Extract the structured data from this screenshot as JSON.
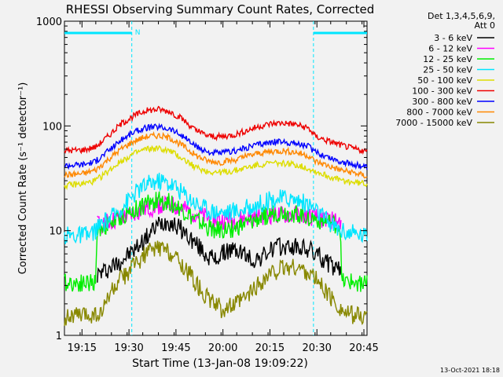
{
  "chart_data": {
    "type": "line",
    "title": "RHESSI Observing Summary Count Rates, Corrected",
    "xlabel": "Start Time (13-Jan-08 19:09:22)",
    "ylabel": "Corrected Count Rate (s⁻¹ detector⁻¹)",
    "yscale": "log",
    "ylim": [
      1,
      1000
    ],
    "xlim_minutes": [
      0,
      96.6
    ],
    "x_ticks": [
      {
        "label": "19:15",
        "minutes": 5.6
      },
      {
        "label": "19:30",
        "minutes": 20.6
      },
      {
        "label": "19:45",
        "minutes": 35.6
      },
      {
        "label": "20:00",
        "minutes": 50.6
      },
      {
        "label": "20:15",
        "minutes": 65.6
      },
      {
        "label": "20:30",
        "minutes": 80.6
      },
      {
        "label": "20:45",
        "minutes": 95.6
      }
    ],
    "y_ticks": [
      {
        "label": "1",
        "value": 1
      },
      {
        "label": "10",
        "value": 10
      },
      {
        "label": "100",
        "value": 100
      },
      {
        "label": "1000",
        "value": 1000
      }
    ],
    "legend_header": [
      "Det 1,3,4,5,6,9,",
      "Att 0"
    ],
    "legend_position": "top-right",
    "night_marker_label": "N",
    "night_marker_color": "#00e5ff",
    "night_intervals_minutes": [
      [
        0,
        21.5
      ],
      [
        79.5,
        96.6
      ]
    ],
    "footer_timestamp": "13-Oct-2021 18:18",
    "series": [
      {
        "name": "3 - 6 keV",
        "color": "#000000",
        "on": [
          10.5,
          88.5
        ],
        "points": [
          [
            10.5,
            3.8
          ],
          [
            14,
            4.3
          ],
          [
            18,
            5.2
          ],
          [
            22,
            6.4
          ],
          [
            26,
            8.5
          ],
          [
            30,
            11.5
          ],
          [
            33,
            12.5
          ],
          [
            37,
            10.5
          ],
          [
            41,
            8.0
          ],
          [
            45,
            6.0
          ],
          [
            48,
            5.2
          ],
          [
            52,
            6.5
          ],
          [
            56,
            6.4
          ],
          [
            60,
            5.2
          ],
          [
            63,
            5.6
          ],
          [
            67,
            6.9
          ],
          [
            71,
            7.0
          ],
          [
            75,
            6.9
          ],
          [
            79,
            6.4
          ],
          [
            83,
            5.2
          ],
          [
            86,
            4.4
          ],
          [
            88.5,
            4.0
          ]
        ]
      },
      {
        "name": "6 - 12 keV",
        "color": "#ff00ff",
        "on": [
          10.5,
          88.5
        ],
        "points": [
          [
            10.5,
            11.5
          ],
          [
            14,
            12.0
          ],
          [
            18,
            13.0
          ],
          [
            22,
            14.5
          ],
          [
            26,
            16.0
          ],
          [
            30,
            17.5
          ],
          [
            34,
            17.5
          ],
          [
            38,
            16.0
          ],
          [
            42,
            14.5
          ],
          [
            46,
            13.0
          ],
          [
            50,
            12.5
          ],
          [
            54,
            12.5
          ],
          [
            58,
            13.0
          ],
          [
            62,
            13.5
          ],
          [
            66,
            14.0
          ],
          [
            70,
            14.0
          ],
          [
            74,
            14.0
          ],
          [
            78,
            13.5
          ],
          [
            82,
            13.0
          ],
          [
            86,
            12.5
          ],
          [
            88.5,
            12.0
          ]
        ]
      },
      {
        "name": "12 - 25 keV",
        "color": "#00ee00",
        "on": [
          0,
          96.6
        ],
        "points": [
          [
            0,
            3.2
          ],
          [
            10,
            3.2
          ],
          [
            10.5,
            10.5
          ],
          [
            14,
            11.5
          ],
          [
            18,
            13.5
          ],
          [
            22,
            15.5
          ],
          [
            26,
            18.0
          ],
          [
            30,
            19.5
          ],
          [
            34,
            18.5
          ],
          [
            38,
            15.5
          ],
          [
            42,
            12.5
          ],
          [
            46,
            10.5
          ],
          [
            50,
            10.0
          ],
          [
            54,
            10.5
          ],
          [
            58,
            11.5
          ],
          [
            62,
            13.0
          ],
          [
            66,
            14.5
          ],
          [
            70,
            15.0
          ],
          [
            74,
            14.5
          ],
          [
            78,
            13.5
          ],
          [
            82,
            12.5
          ],
          [
            86,
            11.5
          ],
          [
            88,
            11.0
          ],
          [
            88.5,
            3.2
          ],
          [
            96.6,
            3.2
          ]
        ]
      },
      {
        "name": "25 - 50 keV",
        "color": "#00e5ff",
        "on": [
          0,
          96.6
        ],
        "points": [
          [
            0,
            9.0
          ],
          [
            8,
            9.0
          ],
          [
            12,
            11.5
          ],
          [
            16,
            14.0
          ],
          [
            20,
            19.0
          ],
          [
            24,
            25.0
          ],
          [
            28,
            29.0
          ],
          [
            31,
            30.0
          ],
          [
            35,
            27.0
          ],
          [
            39,
            21.5
          ],
          [
            43,
            17.5
          ],
          [
            47,
            15.5
          ],
          [
            51,
            15.0
          ],
          [
            55,
            15.5
          ],
          [
            59,
            16.5
          ],
          [
            63,
            18.5
          ],
          [
            67,
            20.0
          ],
          [
            71,
            20.5
          ],
          [
            75,
            19.5
          ],
          [
            79,
            17.0
          ],
          [
            83,
            13.0
          ],
          [
            87,
            10.5
          ],
          [
            91,
            9.5
          ],
          [
            96.6,
            9.0
          ]
        ]
      },
      {
        "name": "50 - 100 keV",
        "color": "#dddd00",
        "on": [
          0,
          96.6
        ],
        "points": [
          [
            0,
            27.0
          ],
          [
            6,
            28.0
          ],
          [
            10,
            30.0
          ],
          [
            14,
            37.0
          ],
          [
            18,
            46.0
          ],
          [
            22,
            54.0
          ],
          [
            26,
            60.0
          ],
          [
            30,
            61.0
          ],
          [
            34,
            57.0
          ],
          [
            38,
            48.0
          ],
          [
            42,
            40.0
          ],
          [
            46,
            36.5
          ],
          [
            50,
            36.0
          ],
          [
            54,
            37.0
          ],
          [
            58,
            40.0
          ],
          [
            62,
            42.5
          ],
          [
            66,
            44.0
          ],
          [
            70,
            44.0
          ],
          [
            74,
            42.5
          ],
          [
            78,
            39.0
          ],
          [
            82,
            35.0
          ],
          [
            86,
            31.5
          ],
          [
            90,
            29.5
          ],
          [
            96.6,
            28.0
          ]
        ]
      },
      {
        "name": "100 - 300 keV",
        "color": "#ee0000",
        "on": [
          0,
          96.6
        ],
        "points": [
          [
            0,
            58.0
          ],
          [
            6,
            59.0
          ],
          [
            10,
            63.0
          ],
          [
            14,
            80.0
          ],
          [
            18,
            104.0
          ],
          [
            22,
            124.0
          ],
          [
            26,
            140.0
          ],
          [
            30,
            144.0
          ],
          [
            34,
            136.0
          ],
          [
            38,
            114.0
          ],
          [
            42,
            90.0
          ],
          [
            46,
            80.0
          ],
          [
            50,
            79.0
          ],
          [
            54,
            82.0
          ],
          [
            58,
            90.0
          ],
          [
            62,
            99.0
          ],
          [
            66,
            105.0
          ],
          [
            70,
            107.0
          ],
          [
            74,
            103.0
          ],
          [
            78,
            95.0
          ],
          [
            80,
            80.0
          ],
          [
            84,
            72.0
          ],
          [
            88,
            66.0
          ],
          [
            92,
            61.0
          ],
          [
            96.6,
            57.0
          ]
        ]
      },
      {
        "name": "300 - 800 keV",
        "color": "#0000ff",
        "on": [
          0,
          96.6
        ],
        "points": [
          [
            0,
            42.0
          ],
          [
            6,
            43.0
          ],
          [
            10,
            46.0
          ],
          [
            14,
            58.0
          ],
          [
            18,
            73.0
          ],
          [
            22,
            87.0
          ],
          [
            26,
            96.0
          ],
          [
            30,
            98.0
          ],
          [
            34,
            93.0
          ],
          [
            38,
            79.0
          ],
          [
            42,
            63.0
          ],
          [
            46,
            56.0
          ],
          [
            50,
            55.0
          ],
          [
            54,
            57.0
          ],
          [
            58,
            62.0
          ],
          [
            62,
            67.0
          ],
          [
            66,
            70.0
          ],
          [
            70,
            70.5
          ],
          [
            74,
            68.0
          ],
          [
            78,
            64.0
          ],
          [
            80,
            56.0
          ],
          [
            84,
            51.0
          ],
          [
            88,
            46.0
          ],
          [
            92,
            43.0
          ],
          [
            96.6,
            40.0
          ]
        ]
      },
      {
        "name": "800 - 7000 keV",
        "color": "#ff8800",
        "on": [
          0,
          96.6
        ],
        "points": [
          [
            0,
            34.0
          ],
          [
            6,
            35.0
          ],
          [
            10,
            38.0
          ],
          [
            14,
            48.0
          ],
          [
            18,
            60.0
          ],
          [
            22,
            71.0
          ],
          [
            26,
            79.0
          ],
          [
            30,
            81.0
          ],
          [
            34,
            76.0
          ],
          [
            38,
            64.0
          ],
          [
            42,
            52.0
          ],
          [
            46,
            46.0
          ],
          [
            50,
            45.0
          ],
          [
            54,
            47.0
          ],
          [
            58,
            51.0
          ],
          [
            62,
            55.0
          ],
          [
            66,
            57.0
          ],
          [
            70,
            58.0
          ],
          [
            74,
            56.0
          ],
          [
            78,
            52.0
          ],
          [
            80,
            46.0
          ],
          [
            84,
            42.0
          ],
          [
            88,
            38.0
          ],
          [
            92,
            36.0
          ],
          [
            96.6,
            33.0
          ]
        ]
      },
      {
        "name": "7000 - 15000 keV",
        "color": "#888800",
        "on": [
          0,
          96.6
        ],
        "points": [
          [
            0,
            1.5
          ],
          [
            12,
            1.6
          ],
          [
            14,
            2.4
          ],
          [
            18,
            3.4
          ],
          [
            22,
            4.6
          ],
          [
            26,
            6.0
          ],
          [
            30,
            7.0
          ],
          [
            34,
            6.2
          ],
          [
            38,
            4.6
          ],
          [
            42,
            3.2
          ],
          [
            46,
            2.2
          ],
          [
            50,
            1.8
          ],
          [
            54,
            1.9
          ],
          [
            58,
            2.3
          ],
          [
            62,
            3.1
          ],
          [
            66,
            3.9
          ],
          [
            70,
            4.4
          ],
          [
            74,
            4.5
          ],
          [
            78,
            4.0
          ],
          [
            82,
            3.0
          ],
          [
            86,
            2.1
          ],
          [
            90,
            1.6
          ],
          [
            96.6,
            1.5
          ]
        ]
      }
    ]
  }
}
